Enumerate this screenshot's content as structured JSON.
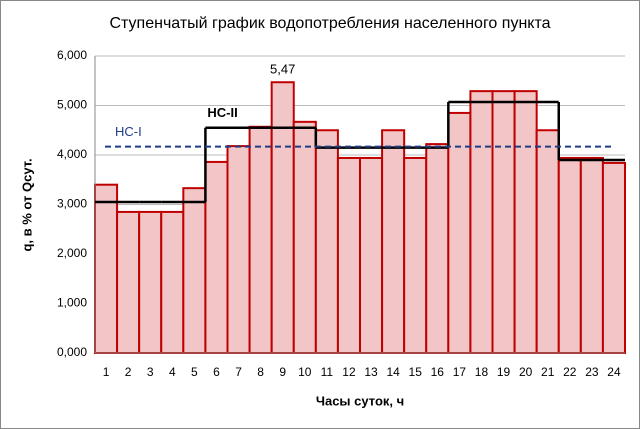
{
  "chart_data": {
    "type": "bar",
    "title": "Ступенчатый график водопотребления населенного пункта",
    "x_label": "Часы суток, ч",
    "y_label": "q, в % от Qсут.",
    "categories": [
      "1",
      "2",
      "3",
      "4",
      "5",
      "6",
      "7",
      "8",
      "9",
      "10",
      "11",
      "12",
      "13",
      "14",
      "15",
      "16",
      "17",
      "18",
      "19",
      "20",
      "21",
      "22",
      "23",
      "24"
    ],
    "values": [
      3.4,
      2.85,
      2.85,
      2.85,
      3.33,
      3.86,
      4.18,
      4.57,
      5.47,
      4.67,
      4.5,
      3.94,
      3.94,
      4.5,
      3.94,
      4.22,
      4.85,
      5.29,
      5.29,
      5.29,
      4.5,
      3.94,
      3.94,
      3.84
    ],
    "value_labels": [
      null,
      null,
      null,
      null,
      null,
      null,
      null,
      null,
      "5,47",
      null,
      null,
      null,
      null,
      null,
      null,
      null,
      null,
      null,
      null,
      null,
      null,
      null,
      null,
      null
    ],
    "color": "#f2c6c6",
    "edge_color": "#c00000",
    "lines": [
      {
        "name": "НС-II",
        "color": "#000000",
        "values": [
          3.05,
          3.05,
          3.05,
          3.05,
          3.05,
          4.55,
          4.55,
          4.55,
          4.55,
          4.55,
          4.15,
          4.15,
          4.15,
          4.15,
          4.15,
          4.15,
          5.07,
          5.07,
          5.07,
          5.07,
          5.07,
          3.9,
          3.9,
          3.9
        ]
      },
      {
        "name": "НС-I",
        "color": "#1f3c88",
        "value": 4.17,
        "dashed": true
      }
    ],
    "ylim": [
      0,
      6
    ],
    "yticks": [
      {
        "value": 0,
        "label": "0,000"
      },
      {
        "value": 1,
        "label": "1,000"
      },
      {
        "value": 2,
        "label": "2,000"
      },
      {
        "value": 3,
        "label": "3,000"
      },
      {
        "value": 4,
        "label": "4,000"
      },
      {
        "value": 5,
        "label": "5,000"
      },
      {
        "value": 6,
        "label": "6,000"
      }
    ],
    "grid": true
  }
}
